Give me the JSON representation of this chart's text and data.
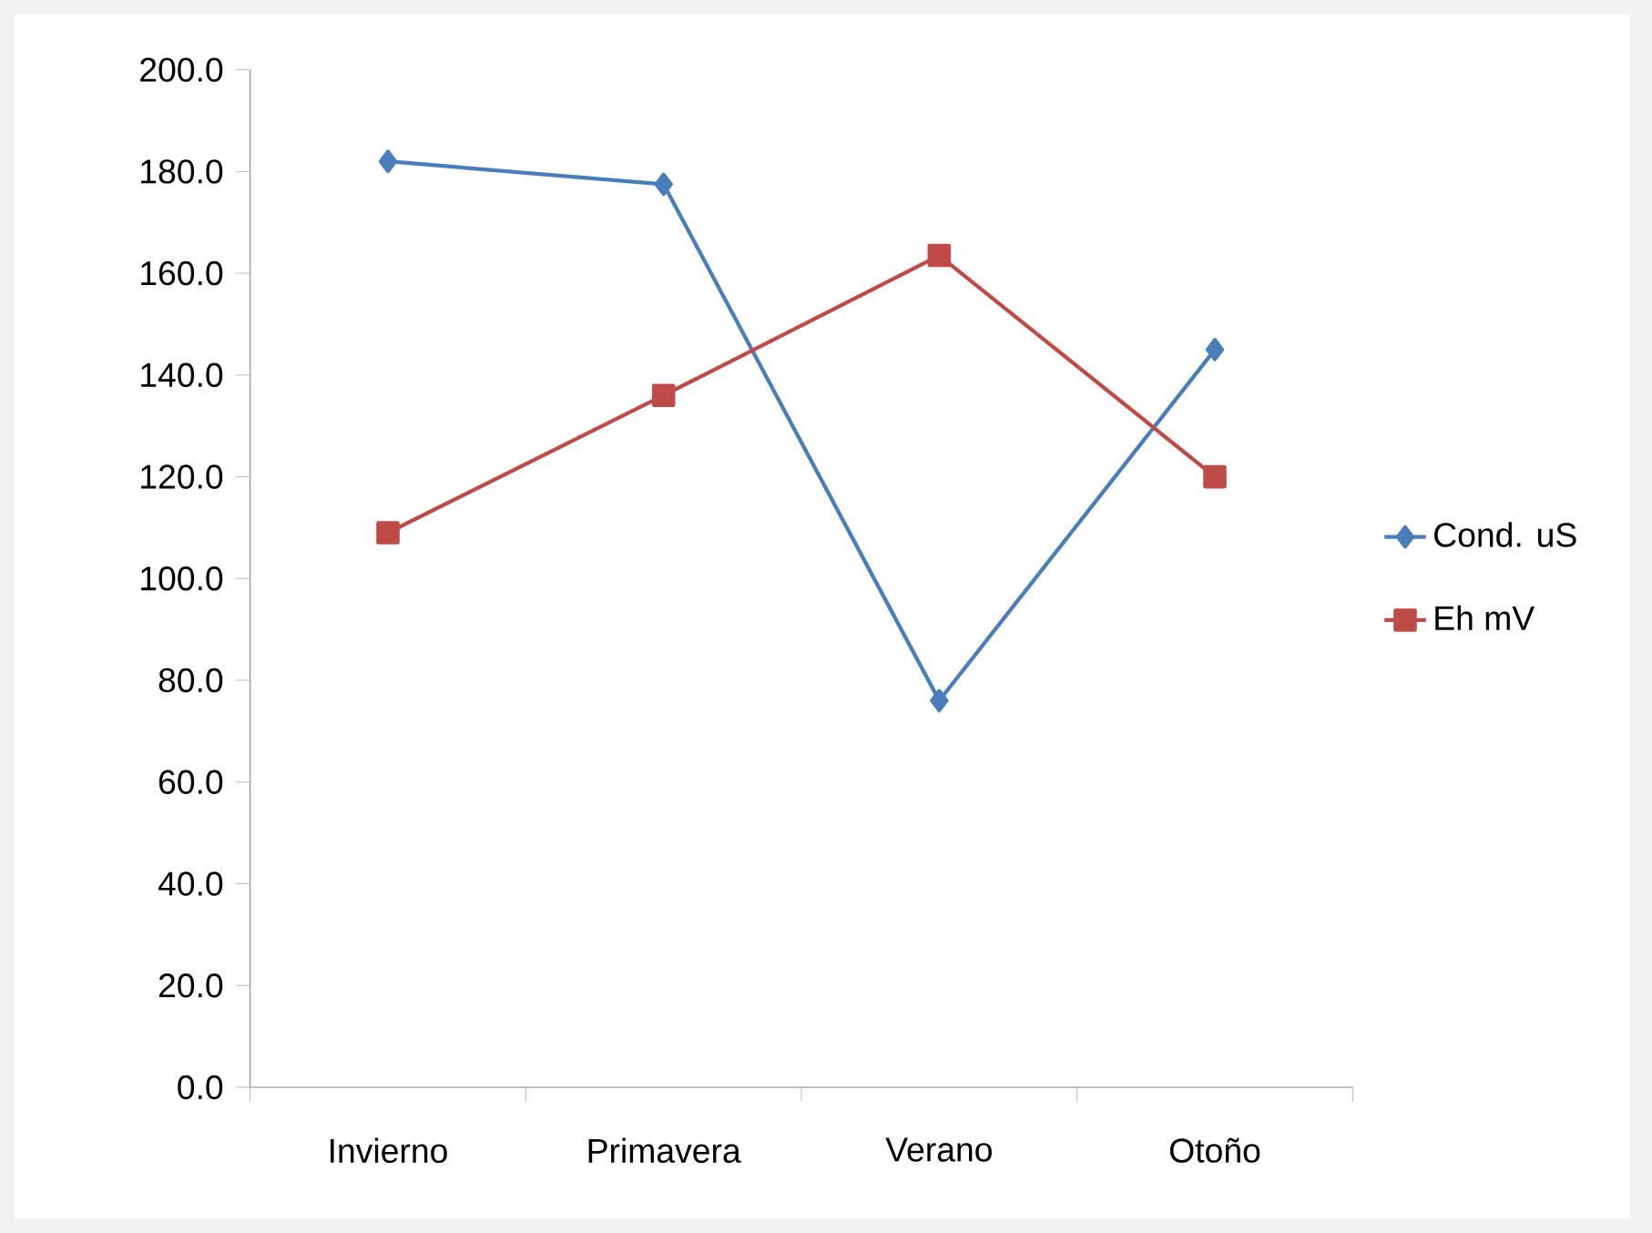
{
  "chart_data": {
    "type": "line",
    "categories": [
      "Invierno",
      "Primavera",
      "Verano",
      "Otoño"
    ],
    "series": [
      {
        "name": "Cond. uS",
        "color": "#4a7ebb",
        "marker": "diamond",
        "values": [
          182,
          177.5,
          76,
          145
        ]
      },
      {
        "name": "Eh mV",
        "color": "#be4b48",
        "marker": "square",
        "values": [
          109,
          136,
          163.5,
          120
        ]
      }
    ],
    "ylim": [
      0,
      200
    ],
    "yticks": [
      {
        "value": 0,
        "label": "0.0"
      },
      {
        "value": 20,
        "label": "20.0"
      },
      {
        "value": 40,
        "label": "40.0"
      },
      {
        "value": 60,
        "label": "60.0"
      },
      {
        "value": 80,
        "label": "80.0"
      },
      {
        "value": 100,
        "label": "100.0"
      },
      {
        "value": 120,
        "label": "120.0"
      },
      {
        "value": 140,
        "label": "140.0"
      },
      {
        "value": 160,
        "label": "160.0"
      },
      {
        "value": 180,
        "label": "180.0"
      },
      {
        "value": 200,
        "label": "200.0"
      }
    ],
    "grid": false,
    "legend": "right"
  }
}
